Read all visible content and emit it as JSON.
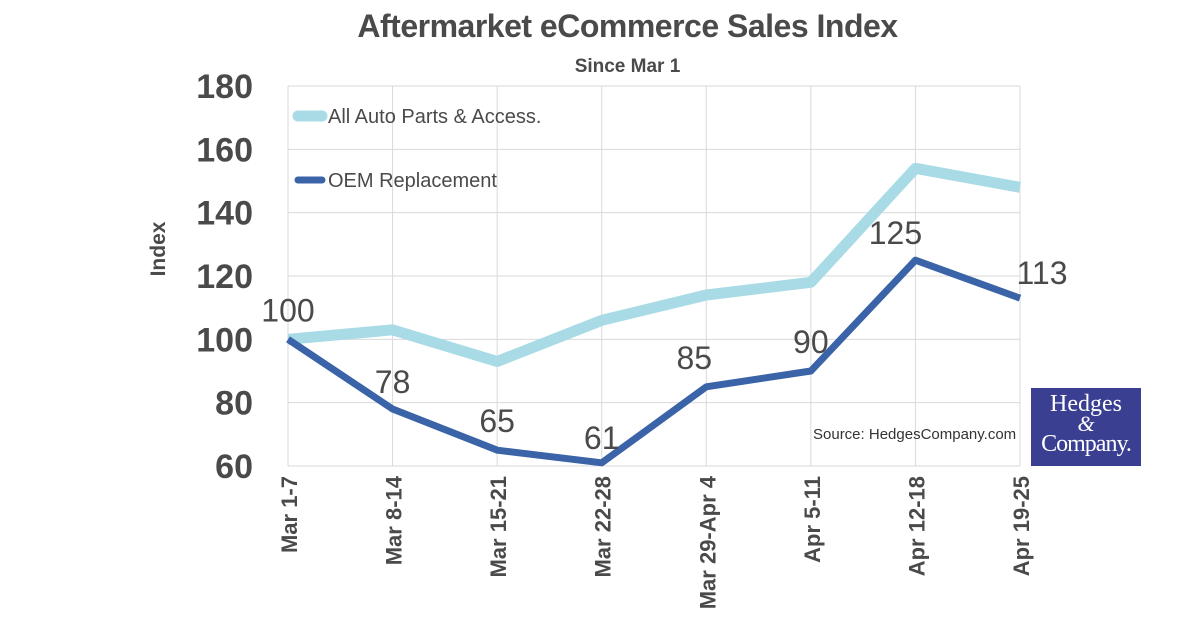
{
  "chart_data": {
    "type": "line",
    "title": "Aftermarket eCommerce Sales Index",
    "subtitle": "Since Mar 1",
    "ylabel": "Index",
    "xlabel": "",
    "categories": [
      "Mar 1-7",
      "Mar 8-14",
      "Mar 15-21",
      "Mar 22-28",
      "Mar 29-Apr 4",
      "Apr 5-11",
      "Apr 12-18",
      "Apr 19-25"
    ],
    "ylim": [
      60,
      180
    ],
    "yticks": [
      60,
      80,
      100,
      120,
      140,
      160,
      180
    ],
    "grid": true,
    "legend_position": "top-left",
    "series": [
      {
        "name": "All Auto Parts & Access.",
        "color": "#a8dbe6",
        "values": [
          100,
          103,
          93,
          106,
          114,
          118,
          154,
          148
        ],
        "show_labels": false
      },
      {
        "name": "OEM Replacement",
        "color": "#3a63a8",
        "values": [
          100,
          78,
          65,
          61,
          85,
          90,
          125,
          113
        ],
        "show_labels": true
      }
    ],
    "source": "Source: HedgesCompany.com"
  },
  "logo": {
    "line1": "Hedges",
    "amp": "&",
    "line2": "Company."
  }
}
